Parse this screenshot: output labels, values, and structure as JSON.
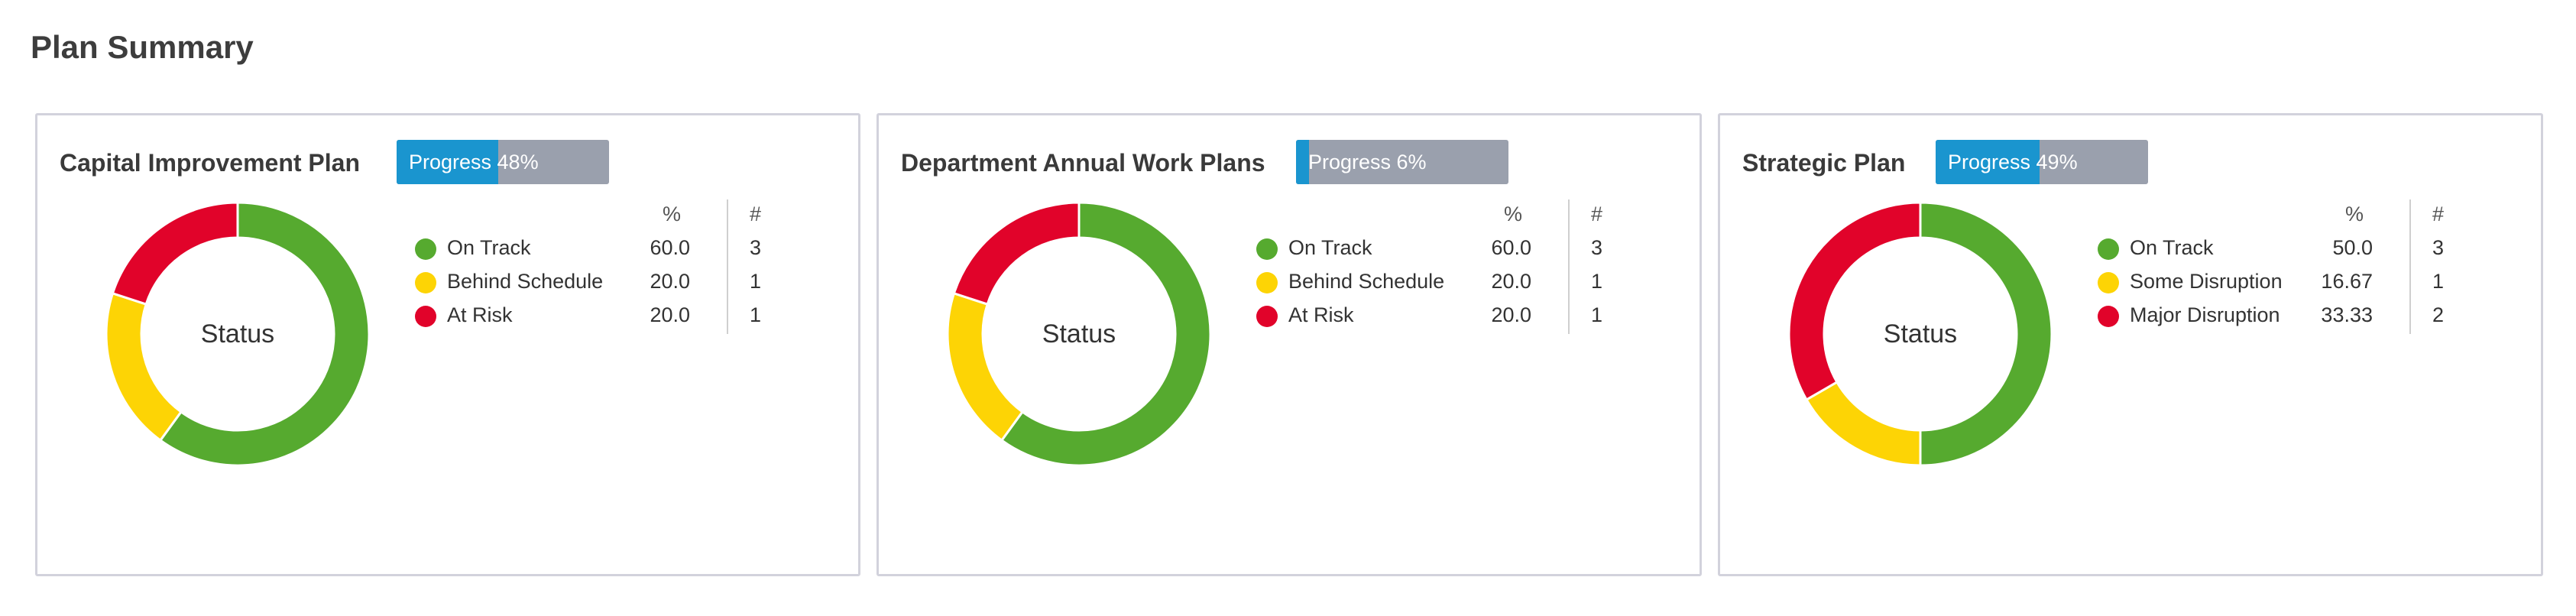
{
  "page": {
    "title": "Plan Summary"
  },
  "legend_header": {
    "pct": "%",
    "count": "#"
  },
  "colors": {
    "green": "#56aa2f",
    "yellow": "#fdd405",
    "red": "#e1032a",
    "progress_fill": "#1a95cf",
    "progress_bg": "#9aa0ad"
  },
  "chart_data": [
    {
      "type": "pie",
      "title": "Capital Improvement Plan",
      "center_label": "Status",
      "progress": {
        "text": "Progress 48%",
        "value": 48
      },
      "slices": [
        {
          "label": "On Track",
          "pct": "60.0",
          "value": 60.0,
          "count": "3",
          "color": "#56aa2f"
        },
        {
          "label": "Behind Schedule",
          "pct": "20.0",
          "value": 20.0,
          "count": "1",
          "color": "#fdd405"
        },
        {
          "label": "At Risk",
          "pct": "20.0",
          "value": 20.0,
          "count": "1",
          "color": "#e1032a"
        }
      ]
    },
    {
      "type": "pie",
      "title": "Department Annual Work Plans",
      "center_label": "Status",
      "progress": {
        "text": "Progress 6%",
        "value": 6
      },
      "slices": [
        {
          "label": "On Track",
          "pct": "60.0",
          "value": 60.0,
          "count": "3",
          "color": "#56aa2f"
        },
        {
          "label": "Behind Schedule",
          "pct": "20.0",
          "value": 20.0,
          "count": "1",
          "color": "#fdd405"
        },
        {
          "label": "At Risk",
          "pct": "20.0",
          "value": 20.0,
          "count": "1",
          "color": "#e1032a"
        }
      ]
    },
    {
      "type": "pie",
      "title": "Strategic Plan",
      "center_label": "Status",
      "progress": {
        "text": "Progress 49%",
        "value": 49
      },
      "slices": [
        {
          "label": "On Track",
          "pct": "50.0",
          "value": 50.0,
          "count": "3",
          "color": "#56aa2f"
        },
        {
          "label": "Some Disruption",
          "pct": "16.67",
          "value": 16.67,
          "count": "1",
          "color": "#fdd405"
        },
        {
          "label": "Major Disruption",
          "pct": "33.33",
          "value": 33.33,
          "count": "2",
          "color": "#e1032a"
        }
      ]
    }
  ]
}
